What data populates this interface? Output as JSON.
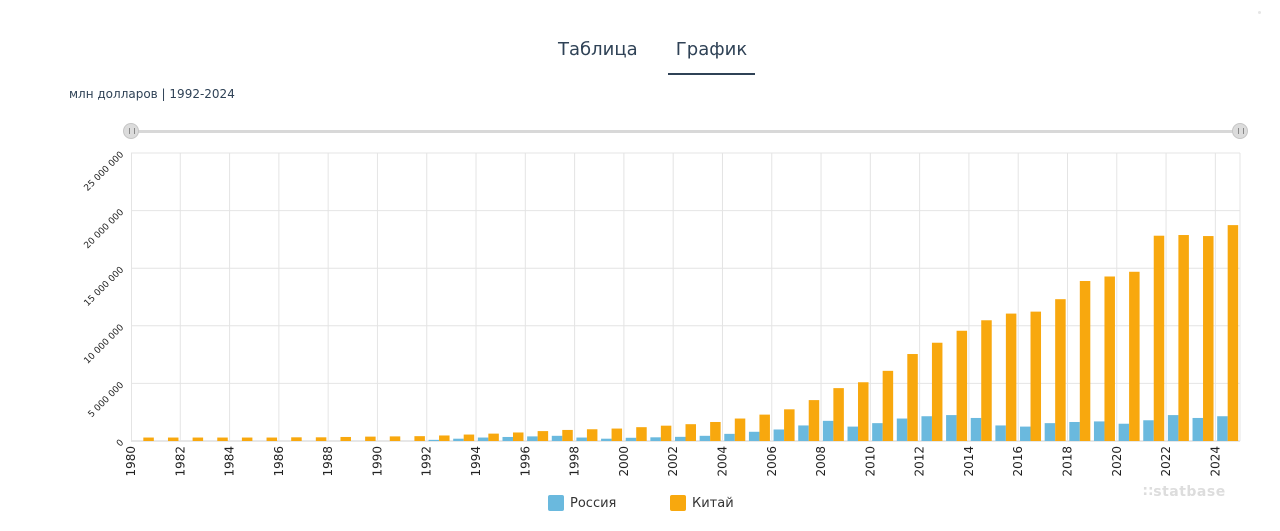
{
  "tabs": {
    "table": "Таблица",
    "chart": "График"
  },
  "unit_label": "млн долларов | 1992-2024",
  "legend": {
    "russia": "Россия",
    "china": "Китай"
  },
  "watermark": "statbase",
  "colors": {
    "russia": "#6ab9de",
    "china": "#f8a80e",
    "grid": "#e4e4e4",
    "axis_text": "#222222"
  },
  "chart_data": {
    "type": "bar",
    "title": "",
    "xlabel": "",
    "ylabel": "млн долларов",
    "ylim": [
      0,
      25000000
    ],
    "yticks": [
      0,
      5000000,
      10000000,
      15000000,
      20000000,
      25000000
    ],
    "ytick_labels": [
      "0",
      "5 000 000",
      "10 000 000",
      "15 000 000",
      "20 000 000",
      "25 000 000"
    ],
    "xtick_labels": [
      "1980",
      "1982",
      "1984",
      "1986",
      "1988",
      "1990",
      "1992",
      "1994",
      "1996",
      "1998",
      "2000",
      "2002",
      "2004",
      "2006",
      "2008",
      "2010",
      "2012",
      "2014",
      "2016",
      "2018",
      "2020",
      "2022",
      "2024"
    ],
    "categories": [
      1980,
      1981,
      1982,
      1983,
      1984,
      1985,
      1986,
      1987,
      1988,
      1989,
      1990,
      1991,
      1992,
      1993,
      1994,
      1995,
      1996,
      1997,
      1998,
      1999,
      2000,
      2001,
      2002,
      2003,
      2004,
      2005,
      2006,
      2007,
      2008,
      2009,
      2010,
      2011,
      2012,
      2013,
      2014,
      2015,
      2016,
      2017,
      2018,
      2019,
      2020,
      2021,
      2022,
      2023,
      2024
    ],
    "series": [
      {
        "name": "Россия",
        "values": [
          null,
          null,
          null,
          null,
          null,
          null,
          null,
          null,
          null,
          null,
          null,
          null,
          100000,
          200000,
          300000,
          350000,
          400000,
          450000,
          300000,
          200000,
          280000,
          320000,
          360000,
          450000,
          620000,
          800000,
          1000000,
          1350000,
          1750000,
          1250000,
          1550000,
          1950000,
          2150000,
          2250000,
          2000000,
          1350000,
          1250000,
          1550000,
          1650000,
          1700000,
          1500000,
          1800000,
          2250000,
          2000000,
          2150000
        ]
      },
      {
        "name": "Китай",
        "values": [
          300000,
          300000,
          300000,
          300000,
          300000,
          300000,
          320000,
          320000,
          350000,
          380000,
          400000,
          420000,
          480000,
          560000,
          640000,
          740000,
          860000,
          960000,
          1020000,
          1080000,
          1200000,
          1330000,
          1460000,
          1650000,
          1950000,
          2290000,
          2750000,
          3550000,
          4590000,
          5100000,
          6090000,
          7550000,
          8530000,
          9570000,
          10480000,
          11060000,
          11230000,
          12310000,
          13890000,
          14280000,
          14690000,
          17820000,
          17880000,
          17790000,
          18740000
        ]
      }
    ]
  }
}
